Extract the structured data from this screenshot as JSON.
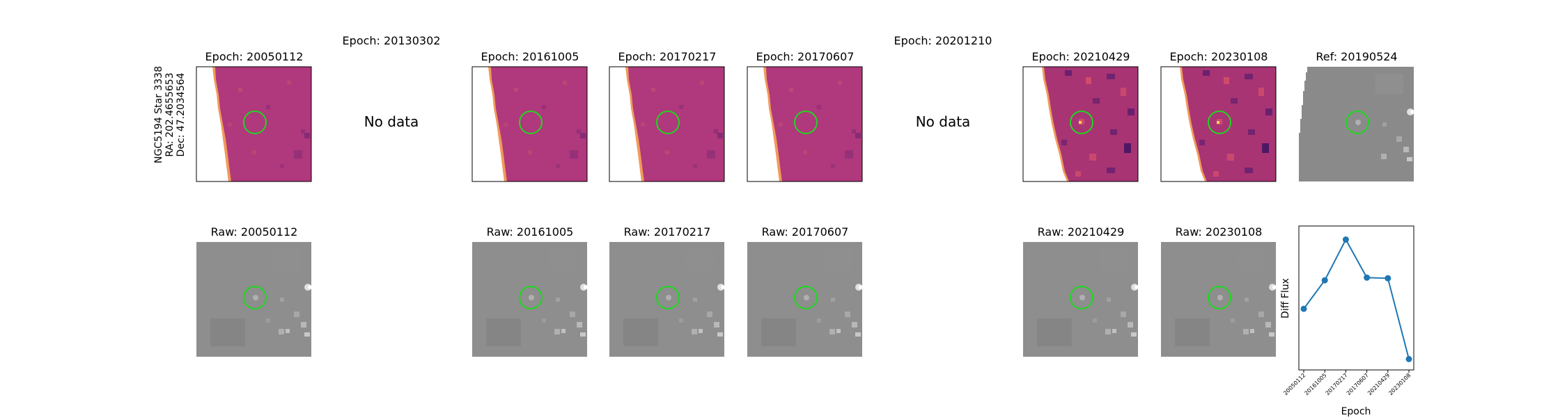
{
  "side_label": {
    "line1": "NGC5194 Star 3338",
    "line2": "RA: 202.4655653",
    "line3": "Dec: 47.2034564"
  },
  "top_row": [
    {
      "title": "Epoch: 20050112",
      "kind": "diff",
      "panel": "diff-a"
    },
    {
      "title": "Epoch: 20130302",
      "kind": "nodata",
      "message": "No data"
    },
    {
      "title": "Epoch: 20161005",
      "kind": "diff",
      "panel": "diff-a"
    },
    {
      "title": "Epoch: 20170217",
      "kind": "diff",
      "panel": "diff-a"
    },
    {
      "title": "Epoch: 20170607",
      "kind": "diff",
      "panel": "diff-a"
    },
    {
      "title": "Epoch: 20201210",
      "kind": "nodata",
      "message": "No data"
    },
    {
      "title": "Epoch: 20210429",
      "kind": "diff",
      "panel": "diff-b"
    },
    {
      "title": "Epoch: 20230108",
      "kind": "diff",
      "panel": "diff-b"
    },
    {
      "title": "Ref: 20190524",
      "kind": "ref",
      "panel": "ref"
    }
  ],
  "bottom_row": [
    {
      "title": "Raw: 20050112"
    },
    null,
    {
      "title": "Raw: 20161005"
    },
    {
      "title": "Raw: 20170217"
    },
    {
      "title": "Raw: 20170607"
    },
    null,
    {
      "title": "Raw: 20210429"
    },
    {
      "title": "Raw: 20230108"
    }
  ],
  "colors": {
    "diff_fill": "#b0387c",
    "diff_noise_dark": "#8a2c78",
    "diff_noise_light": "#c44e72",
    "diff_edge": "#f29a5a",
    "diff_noise_dark_b": "#5a1c6e",
    "diff_noise_light_b": "#e0566a",
    "raw_fill": "#8a8a8a",
    "star_light": "#c8c8c8",
    "circle": "#1ed81e",
    "line": "#1f77b4"
  },
  "chart_data": {
    "type": "line",
    "ylabel": "Diff Flux",
    "xlabel": "Epoch",
    "x": [
      "20050112",
      "20161005",
      "20170217",
      "20170607",
      "20210429",
      "20230108"
    ],
    "y": [
      0.37,
      0.58,
      0.88,
      0.6,
      0.595,
      0.0
    ],
    "ylim": [
      -0.08,
      0.98
    ],
    "marker": "circle",
    "grid": false
  }
}
